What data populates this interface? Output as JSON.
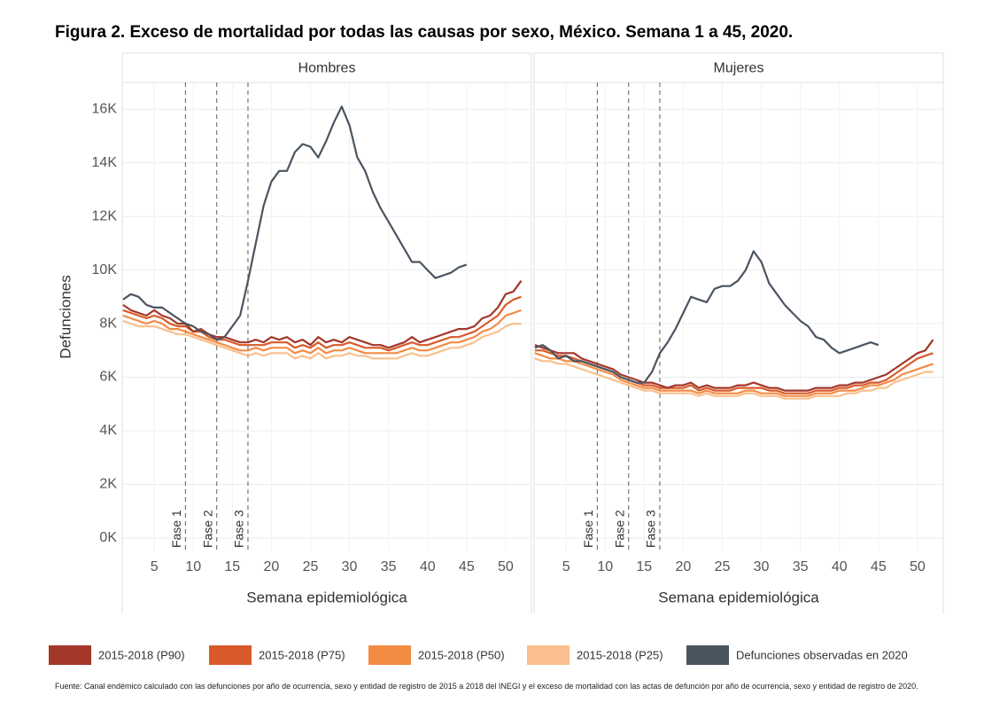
{
  "figure_title": "Figura 2. Exceso de mortalidad por todas las causas por sexo, México. Semana 1 a 45, 2020.",
  "source": "Fuente: Canal endémico calculado con las defunciones por año de ocurrencia, sexo y entidad de registro de 2015 a 2018 del INEGI y el exceso de mortalidad con las actas de defunción por año de ocurrencia, sexo y entidad de registro de 2020.",
  "chart_data": [
    {
      "type": "line",
      "title": "Hombres",
      "x_label": "Semana epidemiológica",
      "y_label": "Defunciones",
      "x": [
        1,
        2,
        3,
        4,
        5,
        6,
        7,
        8,
        9,
        10,
        11,
        12,
        13,
        14,
        15,
        16,
        17,
        18,
        19,
        20,
        21,
        22,
        23,
        24,
        25,
        26,
        27,
        28,
        29,
        30,
        31,
        32,
        33,
        34,
        35,
        36,
        37,
        38,
        39,
        40,
        41,
        42,
        43,
        44,
        45,
        46,
        47,
        48,
        49,
        50,
        51,
        52
      ],
      "xlim": [
        0.9,
        53.3
      ],
      "xticks": [
        5,
        10,
        15,
        20,
        25,
        30,
        35,
        40,
        45,
        50
      ],
      "ylim": [
        -500,
        17000
      ],
      "yticks": [
        {
          "value": 0,
          "label": "0K"
        },
        {
          "value": 2000,
          "label": "2K"
        },
        {
          "value": 4000,
          "label": "4K"
        },
        {
          "value": 6000,
          "label": "6K"
        },
        {
          "value": 8000,
          "label": "8K"
        },
        {
          "value": 10000,
          "label": "10K"
        },
        {
          "value": 12000,
          "label": "12K"
        },
        {
          "value": 14000,
          "label": "14K"
        },
        {
          "value": 16000,
          "label": "16K"
        }
      ],
      "grid": true,
      "annotations": [
        {
          "text": "Fase 1",
          "x": 9
        },
        {
          "text": "Fase 2",
          "x": 13
        },
        {
          "text": "Fase 3",
          "x": 17
        }
      ],
      "series": [
        {
          "name": "2015-2018 (P90)",
          "color": "#a3372a",
          "values": [
            8700,
            8500,
            8400,
            8300,
            8500,
            8300,
            8200,
            8000,
            8000,
            7700,
            7800,
            7600,
            7500,
            7500,
            7400,
            7300,
            7300,
            7400,
            7300,
            7500,
            7400,
            7500,
            7300,
            7400,
            7200,
            7500,
            7300,
            7400,
            7300,
            7500,
            7400,
            7300,
            7200,
            7200,
            7100,
            7200,
            7300,
            7500,
            7300,
            7400,
            7500,
            7600,
            7700,
            7800,
            7800,
            7900,
            8200,
            8300,
            8600,
            9100,
            9200,
            9600
          ]
        },
        {
          "name": "2015-2018 (P75)",
          "color": "#d85a2a",
          "values": [
            8500,
            8400,
            8300,
            8200,
            8300,
            8200,
            8000,
            7900,
            7900,
            7700,
            7700,
            7500,
            7400,
            7400,
            7300,
            7200,
            7200,
            7200,
            7200,
            7300,
            7300,
            7300,
            7100,
            7200,
            7100,
            7300,
            7100,
            7200,
            7200,
            7300,
            7200,
            7100,
            7100,
            7100,
            7000,
            7100,
            7200,
            7300,
            7200,
            7200,
            7300,
            7400,
            7500,
            7500,
            7600,
            7700,
            7900,
            8100,
            8300,
            8700,
            8900,
            9000
          ]
        },
        {
          "name": "2015-2018 (P50)",
          "color": "#f38b45",
          "values": [
            8300,
            8200,
            8100,
            8000,
            8100,
            8000,
            7800,
            7800,
            7700,
            7600,
            7500,
            7400,
            7300,
            7200,
            7100,
            7000,
            7000,
            7100,
            7000,
            7100,
            7100,
            7100,
            6900,
            7000,
            6900,
            7100,
            6900,
            7000,
            7000,
            7100,
            7000,
            6900,
            6900,
            6900,
            6900,
            6900,
            7000,
            7100,
            7000,
            7000,
            7100,
            7200,
            7300,
            7300,
            7400,
            7500,
            7700,
            7800,
            8000,
            8300,
            8400,
            8500
          ]
        },
        {
          "name": "2015-2018 (P25)",
          "color": "#f9c08d",
          "values": [
            8100,
            8000,
            7900,
            7900,
            7900,
            7800,
            7700,
            7600,
            7600,
            7500,
            7400,
            7300,
            7200,
            7100,
            7000,
            6900,
            6800,
            6900,
            6800,
            6900,
            6900,
            6900,
            6700,
            6800,
            6700,
            6900,
            6700,
            6800,
            6800,
            6900,
            6800,
            6800,
            6700,
            6700,
            6700,
            6700,
            6800,
            6900,
            6800,
            6800,
            6900,
            7000,
            7100,
            7100,
            7200,
            7300,
            7500,
            7600,
            7700,
            7900,
            8000,
            8000
          ]
        },
        {
          "name": "Defunciones observadas en 2020",
          "color": "#4a5560",
          "values": [
            8900,
            9100,
            9000,
            8700,
            8600,
            8600,
            8400,
            8200,
            8000,
            7900,
            7700,
            7600,
            7400,
            7500,
            7900,
            8300,
            9600,
            11000,
            12400,
            13300,
            13700,
            13700,
            14400,
            14700,
            14600,
            14200,
            14800,
            15500,
            16100,
            15400,
            14200,
            13700,
            12900,
            12300,
            11800,
            11300,
            10800,
            10300,
            10300,
            10000,
            9700,
            9800,
            9900,
            10100,
            10200,
            null,
            null,
            null,
            null,
            null,
            null,
            null
          ]
        }
      ]
    },
    {
      "type": "line",
      "title": "Mujeres",
      "x_label": "Semana epidemiológica",
      "x": [
        1,
        2,
        3,
        4,
        5,
        6,
        7,
        8,
        9,
        10,
        11,
        12,
        13,
        14,
        15,
        16,
        17,
        18,
        19,
        20,
        21,
        22,
        23,
        24,
        25,
        26,
        27,
        28,
        29,
        30,
        31,
        32,
        33,
        34,
        35,
        36,
        37,
        38,
        39,
        40,
        41,
        42,
        43,
        44,
        45,
        46,
        47,
        48,
        49,
        50,
        51,
        52
      ],
      "xlim": [
        0.9,
        53.3
      ],
      "xticks": [
        5,
        10,
        15,
        20,
        25,
        30,
        35,
        40,
        45,
        50
      ],
      "ylim": [
        -500,
        17000
      ],
      "yticks": [
        0,
        2000,
        4000,
        6000,
        8000,
        10000,
        12000,
        14000,
        16000
      ],
      "grid": true,
      "annotations": [
        {
          "text": "Fase 1",
          "x": 9
        },
        {
          "text": "Fase 2",
          "x": 13
        },
        {
          "text": "Fase 3",
          "x": 17
        }
      ],
      "series": [
        {
          "color": "#a3372a",
          "values": [
            7200,
            7100,
            7000,
            6900,
            6900,
            6900,
            6700,
            6600,
            6500,
            6400,
            6300,
            6100,
            6000,
            5900,
            5800,
            5800,
            5700,
            5600,
            5700,
            5700,
            5800,
            5600,
            5700,
            5600,
            5600,
            5600,
            5700,
            5700,
            5800,
            5700,
            5600,
            5600,
            5500,
            5500,
            5500,
            5500,
            5600,
            5600,
            5600,
            5700,
            5700,
            5800,
            5800,
            5900,
            6000,
            6100,
            6300,
            6500,
            6700,
            6900,
            7000,
            7400
          ]
        },
        {
          "color": "#d85a2a",
          "values": [
            7000,
            7000,
            6900,
            6800,
            6800,
            6700,
            6600,
            6500,
            6400,
            6300,
            6200,
            6000,
            5900,
            5800,
            5700,
            5700,
            5600,
            5600,
            5600,
            5600,
            5700,
            5500,
            5600,
            5500,
            5500,
            5500,
            5600,
            5600,
            5600,
            5600,
            5500,
            5500,
            5400,
            5400,
            5400,
            5400,
            5500,
            5500,
            5500,
            5600,
            5600,
            5700,
            5700,
            5800,
            5800,
            5900,
            6100,
            6300,
            6500,
            6700,
            6800,
            6900
          ]
        },
        {
          "color": "#f38b45",
          "values": [
            6900,
            6800,
            6700,
            6700,
            6600,
            6600,
            6500,
            6400,
            6300,
            6200,
            6100,
            5900,
            5800,
            5700,
            5600,
            5600,
            5500,
            5500,
            5500,
            5500,
            5500,
            5400,
            5500,
            5400,
            5400,
            5400,
            5400,
            5500,
            5500,
            5400,
            5400,
            5400,
            5300,
            5300,
            5300,
            5300,
            5400,
            5400,
            5400,
            5500,
            5500,
            5500,
            5600,
            5700,
            5700,
            5800,
            5900,
            6100,
            6200,
            6300,
            6400,
            6500
          ]
        },
        {
          "color": "#f9c08d",
          "values": [
            6700,
            6600,
            6600,
            6500,
            6500,
            6400,
            6300,
            6200,
            6100,
            6000,
            5900,
            5800,
            5700,
            5600,
            5500,
            5500,
            5400,
            5400,
            5400,
            5400,
            5400,
            5300,
            5400,
            5300,
            5300,
            5300,
            5300,
            5400,
            5400,
            5300,
            5300,
            5300,
            5200,
            5200,
            5200,
            5200,
            5300,
            5300,
            5300,
            5300,
            5400,
            5400,
            5500,
            5500,
            5600,
            5600,
            5800,
            5900,
            6000,
            6100,
            6200,
            6200
          ]
        },
        {
          "color": "#4a5560",
          "values": [
            7100,
            7200,
            7000,
            6700,
            6800,
            6600,
            6600,
            6500,
            6400,
            6300,
            6200,
            6000,
            5900,
            5800,
            5800,
            6200,
            6900,
            7300,
            7800,
            8400,
            9000,
            8900,
            8800,
            9300,
            9400,
            9400,
            9600,
            10000,
            10700,
            10300,
            9500,
            9100,
            8700,
            8400,
            8100,
            7900,
            7500,
            7400,
            7100,
            6900,
            7000,
            7100,
            7200,
            7300,
            7200,
            null,
            null,
            null,
            null,
            null,
            null,
            null
          ]
        }
      ]
    }
  ]
}
